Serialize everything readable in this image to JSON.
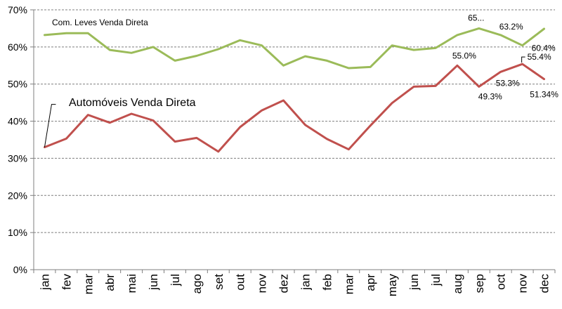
{
  "chart_data": {
    "type": "line",
    "categories": [
      "jan",
      "fev",
      "mar",
      "abr",
      "mai",
      "jun",
      "jul",
      "ago",
      "set",
      "out",
      "nov",
      "dez",
      "jan",
      "feb",
      "mar",
      "apr",
      "may",
      "jun",
      "jul",
      "aug",
      "sep",
      "oct",
      "nov",
      "dec"
    ],
    "ylim": [
      0,
      70
    ],
    "yticks": [
      "0%",
      "10%",
      "20%",
      "30%",
      "40%",
      "50%",
      "60%",
      "70%"
    ],
    "grid": true,
    "series": [
      {
        "name": "Com. Leves Venda Direta",
        "color": "#9bbb59",
        "values": [
          63.2,
          63.7,
          63.7,
          59.2,
          58.4,
          60.0,
          56.3,
          57.6,
          59.4,
          61.8,
          60.4,
          55.0,
          57.5,
          56.3,
          54.3,
          54.6,
          60.4,
          59.2,
          59.7,
          63.2,
          65.0,
          63.2,
          60.4,
          64.9
        ],
        "labels": [
          {
            "index": 20,
            "text": "65..."
          },
          {
            "index": 21,
            "text": "63.2%"
          },
          {
            "index": 22,
            "text": "60.4%"
          }
        ]
      },
      {
        "name": "Automóveis Venda Direta",
        "color": "#c0504d",
        "values": [
          33.0,
          35.3,
          41.7,
          39.6,
          42.0,
          40.2,
          34.5,
          35.5,
          31.8,
          38.4,
          42.9,
          45.6,
          39.0,
          35.2,
          32.4,
          38.8,
          44.9,
          49.3,
          49.5,
          55.0,
          49.3,
          53.3,
          55.4,
          51.34
        ],
        "labels": [
          {
            "index": 19,
            "text": "55.0%"
          },
          {
            "index": 20,
            "text": "49.3%"
          },
          {
            "index": 21,
            "text": "53.3%"
          },
          {
            "index": 22,
            "text": "55.4%"
          },
          {
            "index": 23,
            "text": "51.34%"
          }
        ]
      }
    ]
  }
}
